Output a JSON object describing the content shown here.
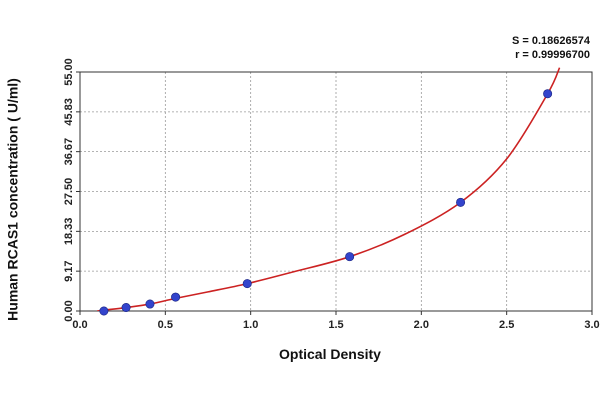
{
  "chart_data": {
    "type": "scatter",
    "xlabel": "Optical Density",
    "ylabel": "Human RCAS1 concentration ( U/ml)",
    "xlim": [
      0,
      3.0
    ],
    "ylim": [
      0,
      55.0
    ],
    "x_ticks": [
      "0.0",
      "0.5",
      "1.0",
      "1.5",
      "2.0",
      "2.5",
      "3.0"
    ],
    "y_ticks": [
      "0.00",
      "9.17",
      "18.33",
      "27.50",
      "36.67",
      "45.83",
      "55.00"
    ],
    "grid": true,
    "stats": [
      "S = 0.18626574",
      "r = 0.99996700"
    ],
    "series": [
      {
        "points": [
          {
            "x": 0.14,
            "y": 0.0
          },
          {
            "x": 0.27,
            "y": 0.8
          },
          {
            "x": 0.41,
            "y": 1.6
          },
          {
            "x": 0.56,
            "y": 3.2
          },
          {
            "x": 0.98,
            "y": 6.3
          },
          {
            "x": 1.58,
            "y": 12.5
          },
          {
            "x": 2.23,
            "y": 25.0
          },
          {
            "x": 2.74,
            "y": 50.0
          }
        ],
        "marker_color": "#3344cc"
      }
    ],
    "fit_curve": {
      "color": "#cc2222",
      "points": [
        {
          "x": 0.1,
          "y": 0.0
        },
        {
          "x": 0.14,
          "y": 0.2
        },
        {
          "x": 0.27,
          "y": 0.8
        },
        {
          "x": 0.41,
          "y": 1.6
        },
        {
          "x": 0.56,
          "y": 2.9
        },
        {
          "x": 0.75,
          "y": 4.4
        },
        {
          "x": 0.98,
          "y": 6.3
        },
        {
          "x": 1.25,
          "y": 9.0
        },
        {
          "x": 1.58,
          "y": 12.5
        },
        {
          "x": 1.9,
          "y": 17.6
        },
        {
          "x": 2.23,
          "y": 25.0
        },
        {
          "x": 2.5,
          "y": 35.0
        },
        {
          "x": 2.74,
          "y": 50.0
        },
        {
          "x": 2.81,
          "y": 56.0
        }
      ]
    }
  }
}
